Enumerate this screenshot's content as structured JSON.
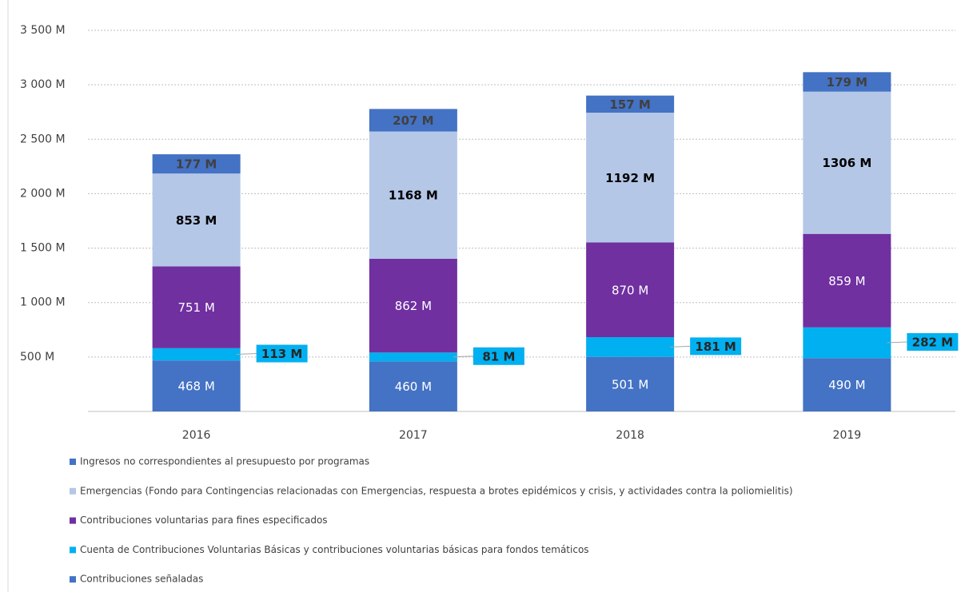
{
  "chart_data": {
    "type": "stacked_bar",
    "categories": [
      "2016",
      "2017",
      "2018",
      "2019"
    ],
    "ylim": [
      0,
      3500
    ],
    "yticks": [
      {
        "value": 500,
        "label": "500 M"
      },
      {
        "value": 1000,
        "label": "1 000 M"
      },
      {
        "value": 1500,
        "label": "1 500 M"
      },
      {
        "value": 2000,
        "label": "2 000 M"
      },
      {
        "value": 2500,
        "label": "2 500 M"
      },
      {
        "value": 3000,
        "label": "3 000 M"
      },
      {
        "value": 3500,
        "label": "3 500 M"
      }
    ],
    "grid": true,
    "legend": "bottom",
    "series": [
      {
        "name": "Contribuciones señaladas",
        "color": "#4472c4",
        "values": [
          468,
          460,
          501,
          490
        ],
        "value_labels": [
          "468 M",
          "460 M",
          "501 M",
          "490 M"
        ]
      },
      {
        "name": "Cuenta de Contribuciones Voluntarias Básicas y contribuciones voluntarias básicas para fondos temáticos",
        "color": "#00b0f0",
        "values": [
          113,
          81,
          181,
          282
        ],
        "value_labels": [
          "113 M",
          "81 M",
          "181 M",
          "282 M"
        ]
      },
      {
        "name": "Contribuciones voluntarias para fines especificados",
        "color": "#7030a0",
        "values": [
          751,
          862,
          870,
          859
        ],
        "value_labels": [
          "751 M",
          "862 M",
          "870 M",
          "859 M"
        ]
      },
      {
        "name": "Emergencias (Fondo para Contingencias relacionadas con Emergencias, respuesta a brotes epidémicos y crisis, y actividades contra la poliomielitis)",
        "color": "#b4c7e7",
        "values": [
          853,
          1168,
          1192,
          1306
        ],
        "value_labels": [
          "853 M",
          "1168 M",
          "1192 M",
          "1306 M"
        ]
      },
      {
        "name": "Ingresos no correspondientes al presupuesto por programas",
        "color": "#4472c4",
        "values": [
          177,
          207,
          157,
          179
        ],
        "value_labels": [
          "177 M",
          "207 M",
          "157 M",
          "179 M"
        ]
      }
    ]
  }
}
